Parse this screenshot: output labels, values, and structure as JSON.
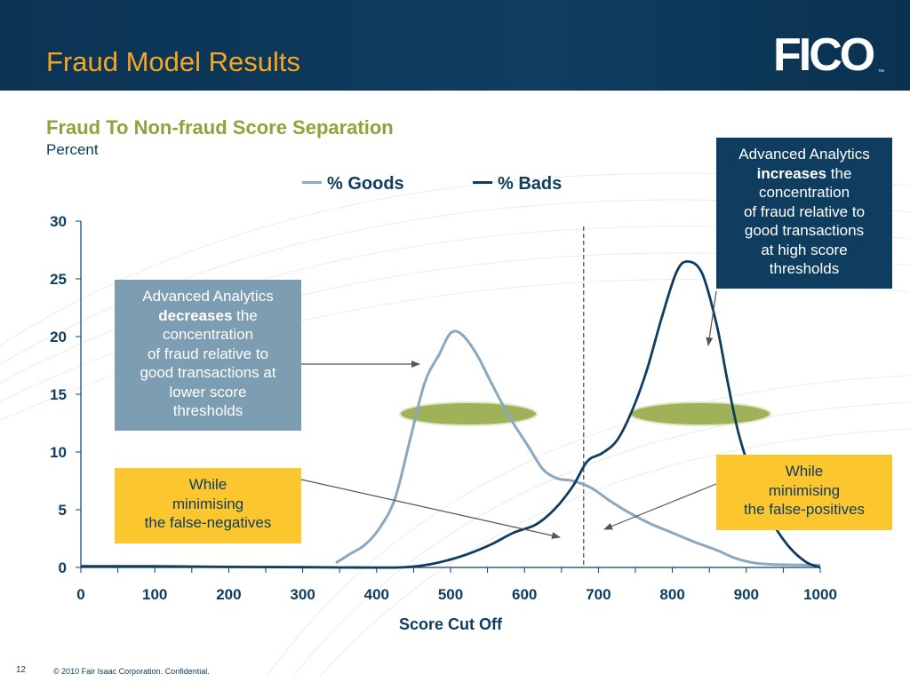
{
  "header": {
    "title": "Fraud Model Results",
    "logo_text": "FICO",
    "logo_mark": "™"
  },
  "chart_data": {
    "type": "line",
    "title": "Fraud To Non-fraud Score Separation",
    "subtitle": "Percent",
    "xlabel": "Score Cut Off",
    "ylabel": "",
    "xlim": [
      0,
      1000
    ],
    "ylim": [
      0,
      30
    ],
    "x_ticks": [
      0,
      100,
      200,
      300,
      400,
      500,
      600,
      700,
      800,
      900,
      1000
    ],
    "y_ticks": [
      0,
      5,
      10,
      15,
      20,
      25,
      30
    ],
    "grid": false,
    "legend_position": "top-center",
    "cutoff_marker_x": 680,
    "series": [
      {
        "name": "% Goods",
        "color": "#8aa8bf",
        "points": [
          [
            345,
            0.4
          ],
          [
            365,
            1.2
          ],
          [
            385,
            2
          ],
          [
            405,
            3.5
          ],
          [
            425,
            6
          ],
          [
            445,
            11
          ],
          [
            465,
            16
          ],
          [
            485,
            18.5
          ],
          [
            500,
            20.3
          ],
          [
            515,
            20.2
          ],
          [
            535,
            18.5
          ],
          [
            555,
            16
          ],
          [
            580,
            13
          ],
          [
            605,
            10.5
          ],
          [
            625,
            8.5
          ],
          [
            645,
            7.7
          ],
          [
            665,
            7.5
          ],
          [
            690,
            6.9
          ],
          [
            715,
            5.8
          ],
          [
            740,
            4.8
          ],
          [
            770,
            3.8
          ],
          [
            800,
            3
          ],
          [
            830,
            2.2
          ],
          [
            860,
            1.5
          ],
          [
            885,
            0.8
          ],
          [
            910,
            0.4
          ],
          [
            940,
            0.25
          ],
          [
            1000,
            0.2
          ]
        ]
      },
      {
        "name": "% Bads",
        "color": "#0f3d60",
        "points": [
          [
            0,
            0.1
          ],
          [
            100,
            0.1
          ],
          [
            200,
            0.05
          ],
          [
            300,
            0.02
          ],
          [
            350,
            0
          ],
          [
            430,
            0
          ],
          [
            465,
            0.2
          ],
          [
            495,
            0.6
          ],
          [
            525,
            1.2
          ],
          [
            555,
            2
          ],
          [
            585,
            3
          ],
          [
            615,
            3.7
          ],
          [
            640,
            5
          ],
          [
            665,
            7
          ],
          [
            685,
            9.2
          ],
          [
            705,
            9.9
          ],
          [
            725,
            11
          ],
          [
            745,
            13.5
          ],
          [
            765,
            17
          ],
          [
            785,
            21.5
          ],
          [
            805,
            25.5
          ],
          [
            820,
            26.5
          ],
          [
            840,
            25.5
          ],
          [
            860,
            21
          ],
          [
            875,
            16
          ],
          [
            890,
            11.5
          ],
          [
            910,
            7.5
          ],
          [
            930,
            4.5
          ],
          [
            955,
            2
          ],
          [
            980,
            0.5
          ],
          [
            1000,
            0
          ]
        ]
      }
    ]
  },
  "callouts": {
    "decrease": {
      "line1": "Advanced Analytics",
      "bold": "decreases",
      "rest": " the",
      "line3": "concentration",
      "line4": "of fraud relative to",
      "line5": "good transactions at",
      "line6": "lower score",
      "line7": "thresholds"
    },
    "increase": {
      "line1": "Advanced Analytics",
      "bold": "increases",
      "rest": " the",
      "line3": "concentration",
      "line4": "of fraud relative to",
      "line5": "good transactions",
      "line6": "at high score",
      "line7": "thresholds"
    },
    "false_negatives": {
      "line1": "While",
      "line2": "minimising",
      "line3": "the false-negatives"
    },
    "false_positives": {
      "line1": "While",
      "line2": "minimising",
      "line3": "the false-positives"
    }
  },
  "footer": {
    "page_number": "12",
    "copyright": "© 2010 Fair Isaac Corporation. Confidential."
  },
  "colors": {
    "header_bg": "#0f3d60",
    "title_orange": "#f5a623",
    "title_green": "#8aa63a",
    "callout_yellow": "#fcc72e",
    "callout_blue_grey": "#7d9db3",
    "callout_navy": "#0f3d60",
    "highlight_ellipse": "#9aae52"
  }
}
